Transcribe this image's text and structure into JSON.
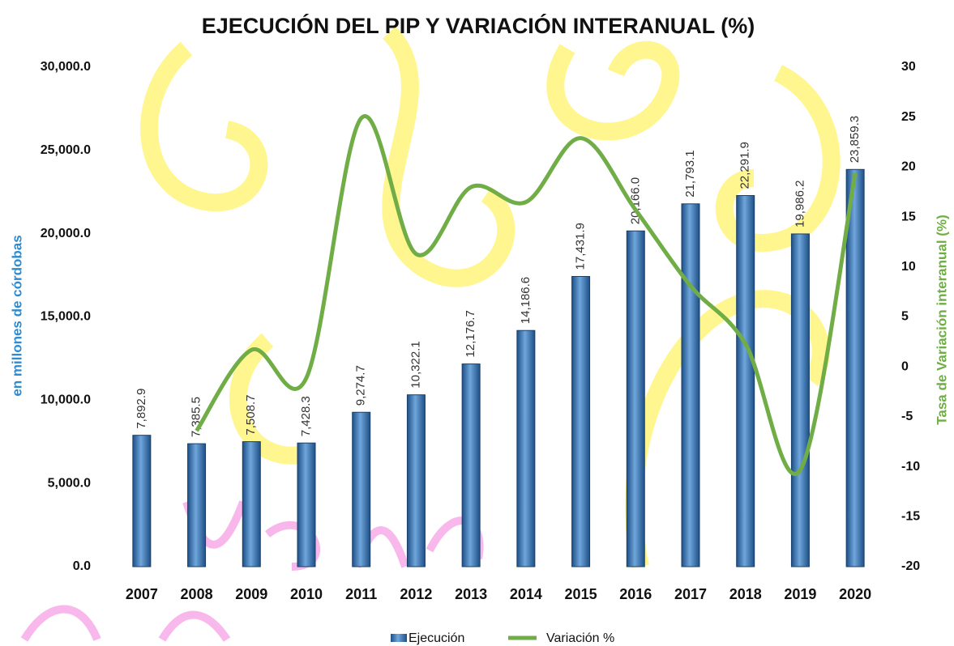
{
  "chart_data": {
    "type": "bar",
    "title": "EJECUCIÓN DEL PIP Y VARIACIÓN INTERANUAL (%)",
    "y_label": "en millones de córdobas",
    "y2_label": "Tasa de Variación interanual (%)",
    "categories": [
      "2007",
      "2008",
      "2009",
      "2010",
      "2011",
      "2012",
      "2013",
      "2014",
      "2015",
      "2016",
      "2017",
      "2018",
      "2019",
      "2020"
    ],
    "series": [
      {
        "name": "Ejecución",
        "type": "bar",
        "color": "#2e6aa8",
        "values": [
          7892.9,
          7385.5,
          7508.7,
          7428.3,
          9274.7,
          10322.1,
          12176.7,
          14186.6,
          17431.9,
          20166.0,
          21793.1,
          22291.9,
          19986.2,
          23859.3
        ],
        "value_labels": [
          "7,892.9",
          "7,385.5",
          "7,508.7",
          "7,428.3",
          "9,274.7",
          "10,322.1",
          "12,176.7",
          "14,186.6",
          "17,431.9",
          "20,166.0",
          "21,793.1",
          "22,291.9",
          "19,986.2",
          "23,859.3"
        ]
      },
      {
        "name": "Variación %",
        "type": "line",
        "axis": "y2",
        "color": "#70ad47",
        "values": [
          null,
          -6.4,
          1.7,
          -1.1,
          24.9,
          11.3,
          18.0,
          16.5,
          22.9,
          15.7,
          8.1,
          2.3,
          -10.3,
          19.4
        ]
      }
    ],
    "ylim": [
      0,
      30000
    ],
    "yticks": [
      {
        "value": 0,
        "label": "0.0"
      },
      {
        "value": 5000,
        "label": "5,000.0"
      },
      {
        "value": 10000,
        "label": "10,000.0"
      },
      {
        "value": 15000,
        "label": "15,000.0"
      },
      {
        "value": 20000,
        "label": "20,000.0"
      },
      {
        "value": 25000,
        "label": "25,000.0"
      },
      {
        "value": 30000,
        "label": "30,000.0"
      }
    ],
    "y2lim": [
      -20,
      30
    ],
    "y2ticks": [
      -20,
      -15,
      -10,
      -5,
      0,
      5,
      10,
      15,
      20,
      25,
      30
    ],
    "grid": false
  }
}
